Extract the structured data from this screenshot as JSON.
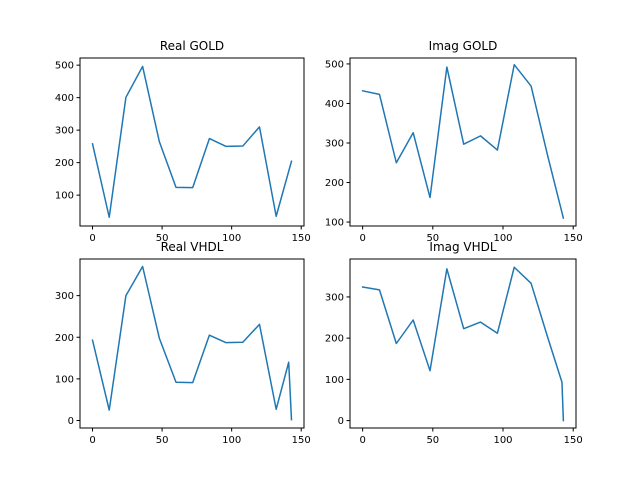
{
  "colors": {
    "series": "#1f77b4"
  },
  "chart_data": [
    {
      "type": "line",
      "title": "Real GOLD",
      "xlim": [
        -9,
        152
      ],
      "ylim": [
        5,
        522
      ],
      "xticks": [
        0,
        50,
        100,
        150
      ],
      "yticks": [
        100,
        200,
        300,
        400,
        500
      ],
      "x": [
        0,
        12,
        24,
        36,
        48,
        60,
        72,
        84,
        96,
        108,
        120,
        132,
        143
      ],
      "values": [
        258,
        32,
        401,
        496,
        265,
        124,
        123,
        274,
        250,
        251,
        310,
        35,
        204
      ]
    },
    {
      "type": "line",
      "title": "Imag GOLD",
      "xlim": [
        -9,
        152
      ],
      "ylim": [
        90,
        515
      ],
      "xticks": [
        0,
        50,
        100,
        150
      ],
      "yticks": [
        100,
        200,
        300,
        400,
        500
      ],
      "x": [
        0,
        12,
        24,
        36,
        48,
        60,
        72,
        84,
        96,
        108,
        120,
        132,
        143
      ],
      "values": [
        432,
        423,
        250,
        326,
        162,
        492,
        297,
        318,
        282,
        498,
        444,
        265,
        110
      ]
    },
    {
      "type": "line",
      "title": "Real VHDL",
      "xlim": [
        -9,
        152
      ],
      "ylim": [
        -18,
        388
      ],
      "xticks": [
        0,
        50,
        100,
        150
      ],
      "yticks": [
        0,
        100,
        200,
        300
      ],
      "x": [
        0,
        12,
        24,
        36,
        48,
        60,
        72,
        84,
        96,
        108,
        120,
        132,
        141,
        143
      ],
      "values": [
        193,
        25,
        300,
        370,
        198,
        92,
        91,
        205,
        187,
        188,
        231,
        27,
        140,
        2
      ]
    },
    {
      "type": "line",
      "title": "Imag VHDL",
      "xlim": [
        -9,
        152
      ],
      "ylim": [
        -18,
        392
      ],
      "xticks": [
        0,
        50,
        100,
        150
      ],
      "yticks": [
        0,
        100,
        200,
        300
      ],
      "x": [
        0,
        12,
        24,
        36,
        48,
        60,
        72,
        84,
        96,
        108,
        120,
        132,
        142,
        143
      ],
      "values": [
        324,
        317,
        187,
        244,
        121,
        368,
        223,
        239,
        212,
        372,
        333,
        200,
        93,
        0
      ]
    }
  ]
}
